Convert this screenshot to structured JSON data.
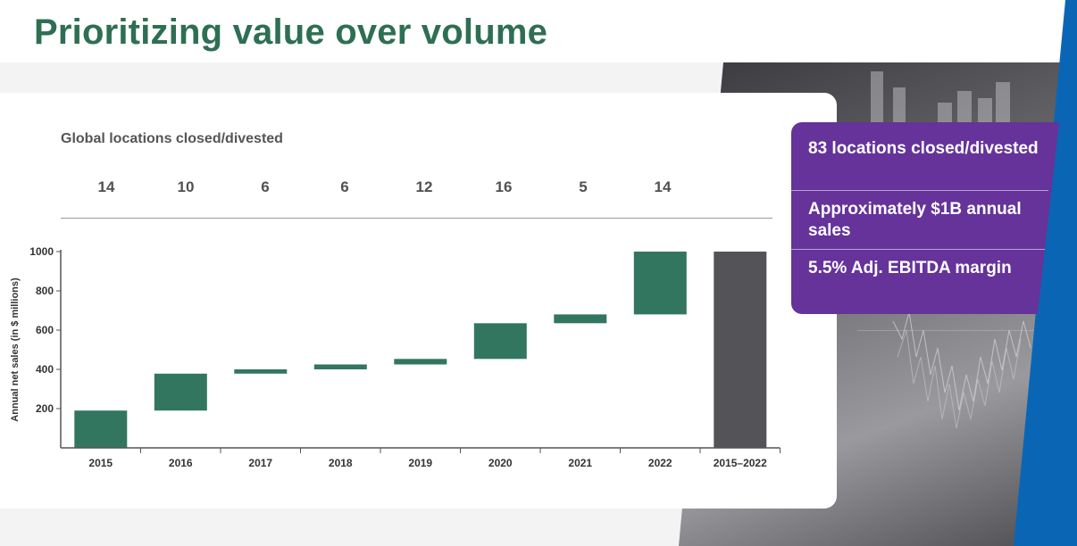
{
  "title": "Prioritizing value over volume",
  "subtitle": "Global locations closed/divested",
  "location_counts": [
    "14",
    "10",
    "6",
    "6",
    "12",
    "16",
    "5",
    "14"
  ],
  "stats": [
    "83 locations closed/divested",
    "Approximately $1B annual sales",
    "5.5% Adj. EBITDA margin"
  ],
  "colors": {
    "title": "#2e6f54",
    "bar": "#337660",
    "total_bar": "#545458",
    "stats_panel": "#65339a",
    "stripe": "#0a66b4"
  },
  "chart_data": {
    "type": "bar",
    "subtype": "waterfall",
    "categories": [
      "2015",
      "2016",
      "2017",
      "2018",
      "2019",
      "2020",
      "2021",
      "2022",
      "2015–2022"
    ],
    "bars": [
      {
        "category": "2015",
        "start": 0,
        "end": 190
      },
      {
        "category": "2016",
        "start": 190,
        "end": 378
      },
      {
        "category": "2017",
        "start": 378,
        "end": 400
      },
      {
        "category": "2018",
        "start": 400,
        "end": 425
      },
      {
        "category": "2019",
        "start": 425,
        "end": 453
      },
      {
        "category": "2020",
        "start": 453,
        "end": 635
      },
      {
        "category": "2021",
        "start": 635,
        "end": 680
      },
      {
        "category": "2022",
        "start": 680,
        "end": 1000
      },
      {
        "category": "2015–2022",
        "start": 0,
        "end": 1000,
        "total": true
      }
    ],
    "ylabel": "Annual net sales (in $ millions)",
    "xlabel": "",
    "yticks": [
      200,
      400,
      600,
      800,
      1000
    ],
    "ylim": [
      0,
      1000
    ],
    "grid": false,
    "legend": "none"
  }
}
